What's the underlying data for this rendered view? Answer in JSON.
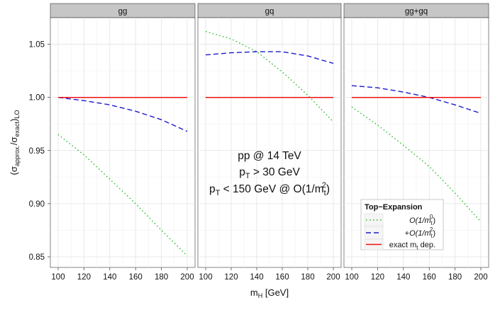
{
  "chart_data": {
    "type": "line",
    "facet_labels": [
      "gg",
      "gq",
      "gg+gq"
    ],
    "ylabel": {
      "main": "(σ",
      "sub1": "approx.",
      "mid": "/σ",
      "sub2": "exact",
      "close": ")",
      "sub3": "LO"
    },
    "xlabel": {
      "main": "m",
      "sub": "H",
      "unit": " [GeV]"
    },
    "xlim": [
      100,
      200
    ],
    "ylim": [
      0.84,
      1.075
    ],
    "x_ticks": [
      100,
      120,
      140,
      160,
      180,
      200
    ],
    "x_tick_labels": [
      "100",
      "120",
      "140",
      "160",
      "180",
      "200"
    ],
    "y_ticks": [
      0.85,
      0.9,
      0.95,
      1.0,
      1.05
    ],
    "y_tick_labels": [
      "0.85",
      "0.90",
      "0.95",
      "1.00",
      "1.05"
    ],
    "annotation": {
      "line1": "pp @ 14 TeV",
      "line2": {
        "a": "p",
        "sub": "T",
        "b": " > 30 GeV"
      },
      "line3": {
        "a": "p",
        "sub": "T",
        "b": " < 150 GeV @ O(1/m",
        "sub2": "t",
        "sup2": "2",
        "c": ")"
      }
    },
    "legend": {
      "title": "Top−Expansion",
      "position": "bottom-right of last panel",
      "entries": [
        {
          "series": "O0",
          "text": {
            "a": "O(1/m",
            "sub": "t",
            "sup": "0",
            "c": ")"
          }
        },
        {
          "series": "O2",
          "text": {
            "pre": "+",
            "a": "O(1/m",
            "sub": "t",
            "sup": "2",
            "c": ")"
          }
        },
        {
          "series": "exact",
          "text": {
            "a": "exact m",
            "sub": "t",
            "c": " dep."
          }
        }
      ]
    },
    "styles": {
      "O0": {
        "color": "#22bb22",
        "dash": "1.5,3.5"
      },
      "O2": {
        "color": "#1a1acc",
        "dash": "7,4"
      },
      "exact": {
        "color": "#ee1111",
        "dash": ""
      }
    },
    "x": [
      100,
      120,
      140,
      160,
      180,
      200
    ],
    "panels": [
      {
        "facet": "gg",
        "series": [
          {
            "key": "O0",
            "values": [
              0.965,
              0.946,
              0.923,
              0.9,
              0.875,
              0.851
            ]
          },
          {
            "key": "O2",
            "values": [
              1.0,
              0.997,
              0.993,
              0.987,
              0.979,
              0.968
            ]
          },
          {
            "key": "exact",
            "values": [
              1.0,
              1.0,
              1.0,
              1.0,
              1.0,
              1.0
            ]
          }
        ]
      },
      {
        "facet": "gq",
        "series": [
          {
            "key": "O0",
            "values": [
              1.062,
              1.055,
              1.043,
              1.024,
              1.002,
              0.977
            ]
          },
          {
            "key": "O2",
            "values": [
              1.04,
              1.042,
              1.043,
              1.043,
              1.039,
              1.032
            ]
          },
          {
            "key": "exact",
            "values": [
              1.0,
              1.0,
              1.0,
              1.0,
              1.0,
              1.0
            ]
          }
        ]
      },
      {
        "facet": "gg+gq",
        "series": [
          {
            "key": "O0",
            "values": [
              0.991,
              0.974,
              0.955,
              0.935,
              0.91,
              0.883
            ]
          },
          {
            "key": "O2",
            "values": [
              1.011,
              1.009,
              1.005,
              1.0,
              0.993,
              0.985
            ]
          },
          {
            "key": "exact",
            "values": [
              1.0,
              1.0,
              1.0,
              1.0,
              1.0,
              1.0
            ]
          }
        ]
      }
    ]
  }
}
